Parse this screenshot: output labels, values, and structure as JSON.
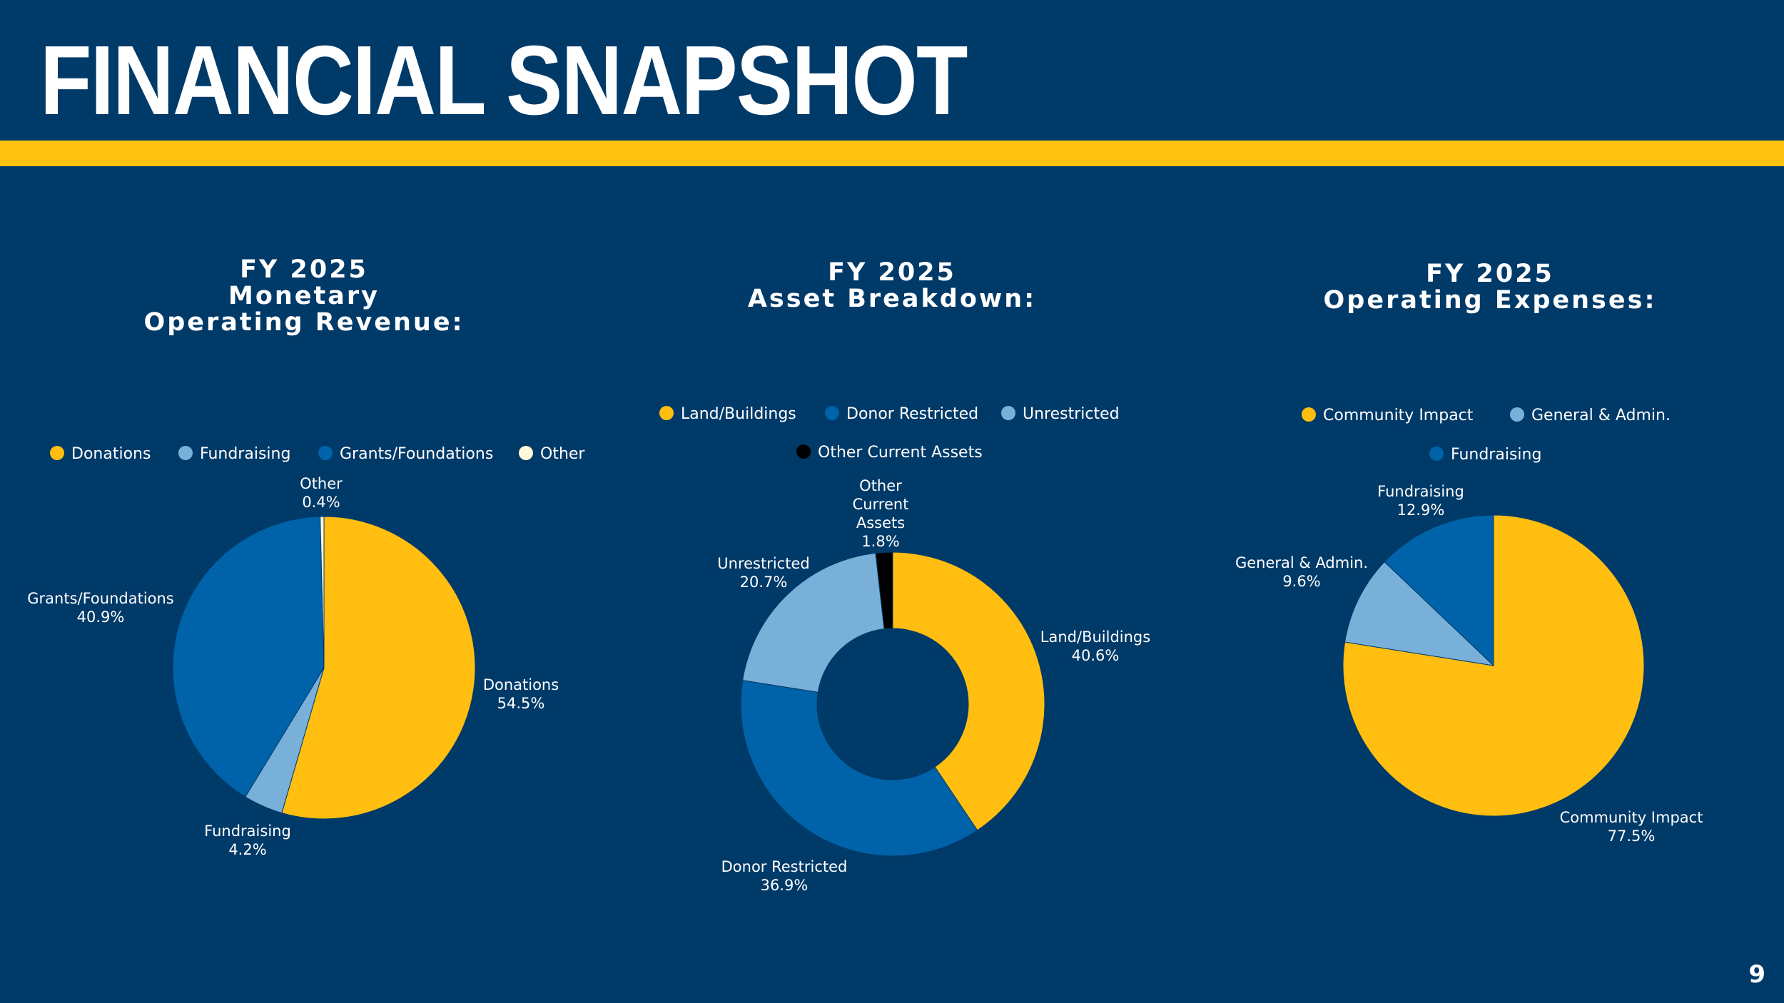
{
  "header": {
    "title": "FINANCIAL SNAPSHOT"
  },
  "page_number": "9",
  "colors": {
    "background": "#003a68",
    "accent": "#ffc20e",
    "gold": "#ffbe10",
    "blue": "#0062a8",
    "light_blue": "#79b0da",
    "cream": "#fff8dc",
    "black": "#000000"
  },
  "chart_data": [
    {
      "type": "pie",
      "title": "FY 2025\nMonetary\nOperating Revenue:",
      "legend": "top",
      "categories": [
        "Donations",
        "Fundraising",
        "Grants/Foundations",
        "Other"
      ],
      "values": [
        54.5,
        4.2,
        40.9,
        0.4
      ],
      "value_labels": [
        "54.5%",
        "4.2%",
        "40.9%",
        "0.4%"
      ],
      "colors": [
        "#ffbe10",
        "#79b0da",
        "#0062a8",
        "#fff8dc"
      ]
    },
    {
      "type": "donut",
      "title": "FY 2025\nAsset Breakdown:",
      "legend": "top",
      "categories": [
        "Land/Buildings",
        "Donor Restricted",
        "Unrestricted",
        "Other Current Assets"
      ],
      "values": [
        40.6,
        36.9,
        20.7,
        1.8
      ],
      "value_labels": [
        "40.6%",
        "36.9%",
        "20.7%",
        "1.8%"
      ],
      "colors": [
        "#ffbe10",
        "#0062a8",
        "#79b0da",
        "#000000"
      ]
    },
    {
      "type": "pie",
      "title": "FY 2025\nOperating Expenses:",
      "legend": "top",
      "categories": [
        "Community Impact",
        "General & Admin.",
        "Fundraising"
      ],
      "values": [
        77.5,
        9.6,
        12.9
      ],
      "value_labels": [
        "77.5%",
        "9.6%",
        "12.9%"
      ],
      "colors": [
        "#ffbe10",
        "#79b0da",
        "#0062a8"
      ]
    }
  ]
}
